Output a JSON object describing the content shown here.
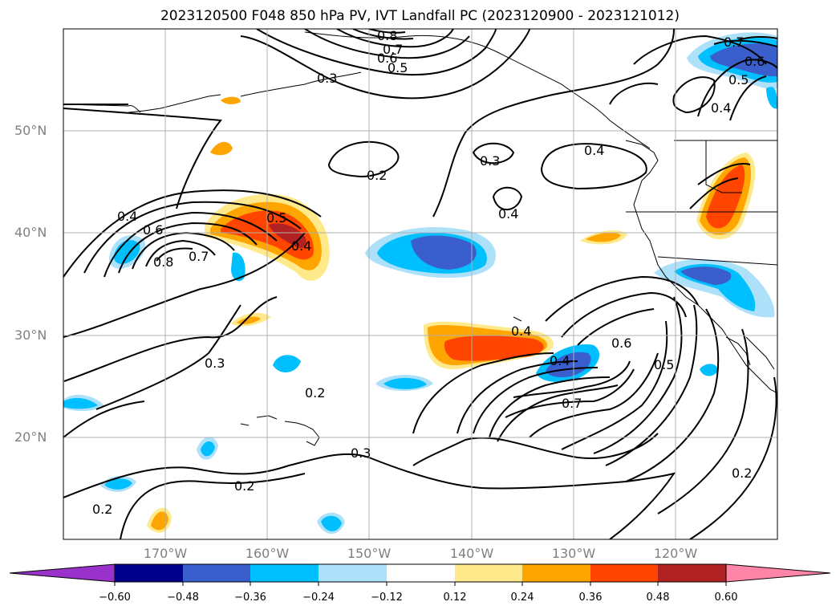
{
  "title": "2023120500 F048 850 hPa PV, IVT Landfall PC (2023120900 - 2023121012)",
  "lat_labels": [
    "50°N",
    "40°N",
    "30°N",
    "20°N"
  ],
  "lon_labels": [
    "170°W",
    "160°W",
    "150°W",
    "140°W",
    "130°W",
    "120°W"
  ],
  "colorbar": {
    "ticks": [
      "−0.60",
      "−0.48",
      "−0.36",
      "−0.24",
      "−0.12",
      "0.12",
      "0.24",
      "0.36",
      "0.48",
      "0.60"
    ],
    "colors": [
      "#9932CC",
      "#00008B",
      "#3A5FCD",
      "#00BFFF",
      "#ADE1FA",
      "#FFFFFF",
      "#FFE98A",
      "#FFA500",
      "#FF4500",
      "#B22222",
      "#FF85A8"
    ]
  },
  "contour_labels": [
    "0.8",
    "0.7",
    "0.6",
    "0.5",
    "0.3",
    "0.2",
    "0.3",
    "0.4",
    "0.4",
    "0.6",
    "0.8",
    "0.7",
    "0.5",
    "0.4",
    "0.3",
    "0.2",
    "0.4",
    "0.4",
    "0.6",
    "0.5",
    "0.7",
    "0.2",
    "0.3",
    "0.2",
    "0.2",
    "0.7",
    "0.6",
    "0.5",
    "0.4",
    "0.4"
  ]
}
